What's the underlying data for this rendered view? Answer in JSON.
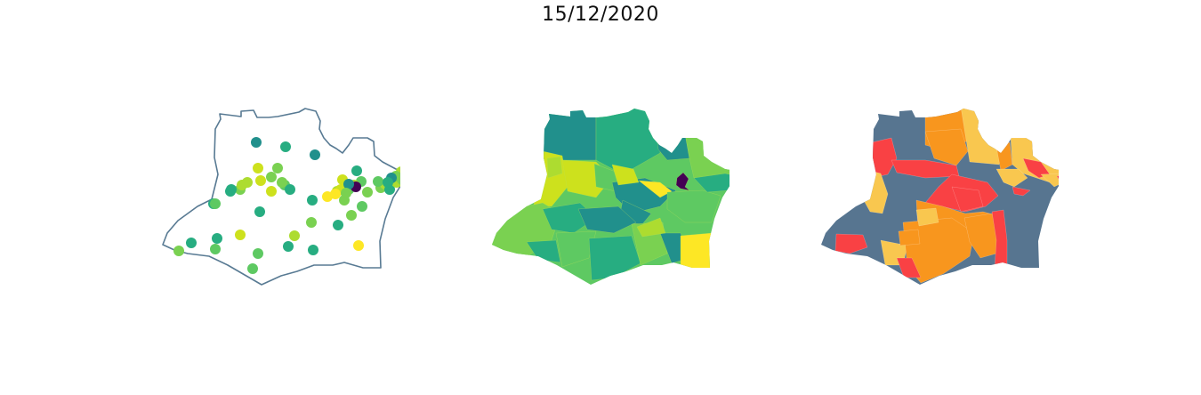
{
  "figure": {
    "title": "15/12/2020"
  },
  "palette": {
    "viridis": [
      "#440154",
      "#21908c",
      "#27ad81",
      "#5ec962",
      "#7ad151",
      "#addc30",
      "#cde11d",
      "#fde725"
    ],
    "risk": [
      "#f94144",
      "#f8961e",
      "#f9c74f",
      "#577590"
    ]
  },
  "maps": [
    {
      "name": "points",
      "type": "point-map",
      "point_count": 60
    },
    {
      "name": "choropleth-viridis",
      "type": "choropleth"
    },
    {
      "name": "choropleth-risk",
      "type": "choropleth"
    }
  ]
}
